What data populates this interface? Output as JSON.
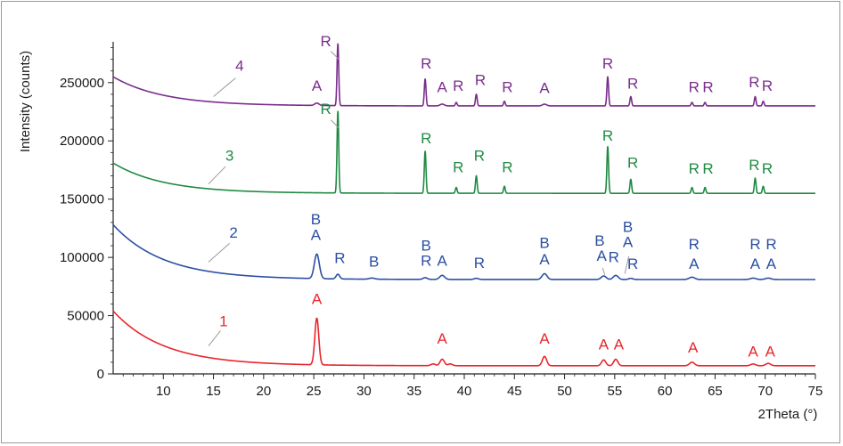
{
  "chart_data": {
    "type": "line",
    "xlabel": "2Theta (°)",
    "ylabel": "Intensity (counts)",
    "xlim": [
      5,
      75
    ],
    "ylim": [
      0,
      285000
    ],
    "xticks": [
      10,
      15,
      20,
      25,
      30,
      35,
      40,
      45,
      50,
      55,
      60,
      65,
      70,
      75
    ],
    "yticks": [
      0,
      50000,
      100000,
      150000,
      200000,
      250000
    ],
    "xtick_labels": [
      "10",
      "15",
      "20",
      "25",
      "30",
      "35",
      "40",
      "45",
      "50",
      "55",
      "60",
      "65",
      "70",
      "75"
    ],
    "ytick_labels": [
      "0",
      "50000",
      "100000",
      "150000",
      "200000",
      "250000"
    ],
    "grid": false,
    "series": [
      {
        "name": "1",
        "color": "#e8262b",
        "background": {
          "start": 54000,
          "end": 7000,
          "decay": 5
        },
        "peaks": [
          {
            "x": 25.3,
            "h": 40000,
            "w": 0.28
          },
          {
            "x": 36.9,
            "h": 1500,
            "w": 0.3
          },
          {
            "x": 37.8,
            "h": 5500,
            "w": 0.3
          },
          {
            "x": 38.6,
            "h": 1500,
            "w": 0.3
          },
          {
            "x": 48.0,
            "h": 8000,
            "w": 0.3
          },
          {
            "x": 53.9,
            "h": 5000,
            "w": 0.3
          },
          {
            "x": 55.1,
            "h": 5500,
            "w": 0.3
          },
          {
            "x": 62.7,
            "h": 3000,
            "w": 0.35
          },
          {
            "x": 68.8,
            "h": 1500,
            "w": 0.35
          },
          {
            "x": 70.3,
            "h": 2000,
            "w": 0.35
          }
        ],
        "labels": [
          {
            "text": "A",
            "x": 25.3,
            "y": 60000
          },
          {
            "text": "A",
            "x": 37.8,
            "y": 26000
          },
          {
            "text": "A",
            "x": 48.0,
            "y": 26000
          },
          {
            "text": "A",
            "x": 53.9,
            "y": 21000
          },
          {
            "text": "A",
            "x": 55.4,
            "y": 21000
          },
          {
            "text": "A",
            "x": 62.8,
            "y": 18500
          },
          {
            "text": "A",
            "x": 68.8,
            "y": 15000
          },
          {
            "text": "A",
            "x": 70.5,
            "y": 15000
          }
        ]
      },
      {
        "name": "2",
        "color": "#2b4fa2",
        "background": {
          "start": 128000,
          "end": 81000,
          "decay": 5
        },
        "peaks": [
          {
            "x": 25.3,
            "h": 21000,
            "w": 0.35
          },
          {
            "x": 27.4,
            "h": 4000,
            "w": 0.25
          },
          {
            "x": 30.8,
            "h": 1000,
            "w": 0.4
          },
          {
            "x": 36.1,
            "h": 1500,
            "w": 0.3
          },
          {
            "x": 37.8,
            "h": 3500,
            "w": 0.35
          },
          {
            "x": 41.2,
            "h": 1000,
            "w": 0.3
          },
          {
            "x": 48.0,
            "h": 5000,
            "w": 0.35
          },
          {
            "x": 53.9,
            "h": 3000,
            "w": 0.35
          },
          {
            "x": 55.1,
            "h": 3500,
            "w": 0.35
          },
          {
            "x": 56.6,
            "h": 1000,
            "w": 0.3
          },
          {
            "x": 62.7,
            "h": 2000,
            "w": 0.4
          },
          {
            "x": 68.8,
            "h": 1200,
            "w": 0.4
          },
          {
            "x": 70.3,
            "h": 1200,
            "w": 0.4
          }
        ],
        "labels": [
          {
            "text": "B",
            "x": 25.2,
            "y": 128500
          },
          {
            "text": "A",
            "x": 25.2,
            "y": 115000
          },
          {
            "text": "R",
            "x": 27.6,
            "y": 95000
          },
          {
            "text": "B",
            "x": 31.0,
            "y": 92000
          },
          {
            "text": "B",
            "x": 36.2,
            "y": 106000
          },
          {
            "text": "R",
            "x": 36.2,
            "y": 93000
          },
          {
            "text": "A",
            "x": 37.8,
            "y": 93000
          },
          {
            "text": "R",
            "x": 41.5,
            "y": 91000
          },
          {
            "text": "B",
            "x": 48.0,
            "y": 108000
          },
          {
            "text": "A",
            "x": 48.0,
            "y": 94000
          },
          {
            "text": "B",
            "x": 53.5,
            "y": 110000
          },
          {
            "text": "A",
            "x": 53.7,
            "y": 97000
          },
          {
            "text": "R",
            "x": 54.9,
            "y": 96000
          },
          {
            "text": "B",
            "x": 56.3,
            "y": 122000
          },
          {
            "text": "A",
            "x": 56.3,
            "y": 109000
          },
          {
            "text": "R",
            "x": 56.8,
            "y": 90000
          },
          {
            "text": "R",
            "x": 62.9,
            "y": 107000
          },
          {
            "text": "A",
            "x": 62.9,
            "y": 90000
          },
          {
            "text": "R",
            "x": 69.0,
            "y": 107000
          },
          {
            "text": "R",
            "x": 70.6,
            "y": 107000
          },
          {
            "text": "A",
            "x": 69.0,
            "y": 90000
          },
          {
            "text": "A",
            "x": 70.6,
            "y": 90000
          }
        ]
      },
      {
        "name": "3",
        "color": "#1f8a43",
        "background": {
          "start": 181000,
          "end": 155000,
          "decay": 5
        },
        "peaks": [
          {
            "x": 27.4,
            "h": 70000,
            "w": 0.12
          },
          {
            "x": 36.1,
            "h": 36000,
            "w": 0.12
          },
          {
            "x": 39.2,
            "h": 5000,
            "w": 0.12
          },
          {
            "x": 41.2,
            "h": 15000,
            "w": 0.12
          },
          {
            "x": 44.0,
            "h": 6000,
            "w": 0.12
          },
          {
            "x": 54.3,
            "h": 40000,
            "w": 0.12
          },
          {
            "x": 56.6,
            "h": 12000,
            "w": 0.12
          },
          {
            "x": 62.7,
            "h": 5000,
            "w": 0.12
          },
          {
            "x": 64.0,
            "h": 5000,
            "w": 0.12
          },
          {
            "x": 69.0,
            "h": 13000,
            "w": 0.12
          },
          {
            "x": 69.8,
            "h": 6000,
            "w": 0.12
          }
        ],
        "labels": [
          {
            "text": "R",
            "x": 26.2,
            "y": 223000
          },
          {
            "text": "R",
            "x": 36.2,
            "y": 198000
          },
          {
            "text": "R",
            "x": 39.4,
            "y": 173000
          },
          {
            "text": "R",
            "x": 41.5,
            "y": 183000
          },
          {
            "text": "R",
            "x": 44.3,
            "y": 173000
          },
          {
            "text": "R",
            "x": 54.3,
            "y": 200000
          },
          {
            "text": "R",
            "x": 56.8,
            "y": 177000
          },
          {
            "text": "R",
            "x": 62.9,
            "y": 172000
          },
          {
            "text": "R",
            "x": 64.3,
            "y": 172000
          },
          {
            "text": "R",
            "x": 68.9,
            "y": 175000
          },
          {
            "text": "R",
            "x": 70.2,
            "y": 172000
          }
        ]
      },
      {
        "name": "4",
        "color": "#7a2d8c",
        "background": {
          "start": 255000,
          "end": 230000,
          "decay": 5
        },
        "peaks": [
          {
            "x": 25.3,
            "h": 2000,
            "w": 0.3
          },
          {
            "x": 27.4,
            "h": 53000,
            "w": 0.12
          },
          {
            "x": 36.1,
            "h": 23000,
            "w": 0.12
          },
          {
            "x": 37.8,
            "h": 1500,
            "w": 0.3
          },
          {
            "x": 39.2,
            "h": 3000,
            "w": 0.12
          },
          {
            "x": 41.2,
            "h": 10000,
            "w": 0.12
          },
          {
            "x": 44.0,
            "h": 4000,
            "w": 0.12
          },
          {
            "x": 48.0,
            "h": 1500,
            "w": 0.3
          },
          {
            "x": 54.3,
            "h": 25000,
            "w": 0.12
          },
          {
            "x": 56.6,
            "h": 8000,
            "w": 0.12
          },
          {
            "x": 62.7,
            "h": 3000,
            "w": 0.12
          },
          {
            "x": 64.0,
            "h": 3000,
            "w": 0.12
          },
          {
            "x": 69.0,
            "h": 8000,
            "w": 0.12
          },
          {
            "x": 69.8,
            "h": 4000,
            "w": 0.12
          }
        ],
        "labels": [
          {
            "text": "A",
            "x": 25.3,
            "y": 243000
          },
          {
            "text": "R",
            "x": 26.2,
            "y": 281000
          },
          {
            "text": "R",
            "x": 36.2,
            "y": 262000
          },
          {
            "text": "A",
            "x": 37.8,
            "y": 242000
          },
          {
            "text": "R",
            "x": 39.4,
            "y": 243000
          },
          {
            "text": "R",
            "x": 41.6,
            "y": 248000
          },
          {
            "text": "R",
            "x": 44.3,
            "y": 242000
          },
          {
            "text": "A",
            "x": 48.0,
            "y": 241000
          },
          {
            "text": "R",
            "x": 54.3,
            "y": 262000
          },
          {
            "text": "R",
            "x": 56.8,
            "y": 245000
          },
          {
            "text": "R",
            "x": 62.9,
            "y": 242000
          },
          {
            "text": "R",
            "x": 64.3,
            "y": 242000
          },
          {
            "text": "R",
            "x": 68.9,
            "y": 246000
          },
          {
            "text": "R",
            "x": 70.2,
            "y": 243000
          }
        ]
      }
    ],
    "leaders": [
      {
        "series": 0,
        "text": "1",
        "from": [
          14.5,
          24000
        ],
        "to": [
          15.7,
          37000
        ],
        "label": [
          16.0,
          41000
        ]
      },
      {
        "series": 1,
        "text": "2",
        "from": [
          14.5,
          96000
        ],
        "to": [
          16.6,
          112000
        ],
        "label": [
          17.0,
          117000
        ]
      },
      {
        "series": 2,
        "text": "3",
        "from": [
          14.5,
          163000
        ],
        "to": [
          16.2,
          178000
        ],
        "label": [
          16.6,
          183000
        ]
      },
      {
        "series": 3,
        "text": "4",
        "from": [
          15.0,
          238000
        ],
        "to": [
          17.2,
          254000
        ],
        "label": [
          17.6,
          260000
        ]
      },
      {
        "series": 1,
        "text": "",
        "from": [
          54.0,
          85000
        ],
        "to": [
          53.8,
          91000
        ]
      },
      {
        "series": 1,
        "text": "",
        "from": [
          56.0,
          86000
        ],
        "to": [
          56.4,
          101000
        ]
      },
      {
        "series": 2,
        "text": "",
        "from": [
          27.5,
          211000
        ],
        "to": [
          26.7,
          218000
        ]
      },
      {
        "series": 3,
        "text": "",
        "from": [
          27.5,
          270000
        ],
        "to": [
          26.7,
          277000
        ]
      }
    ]
  }
}
